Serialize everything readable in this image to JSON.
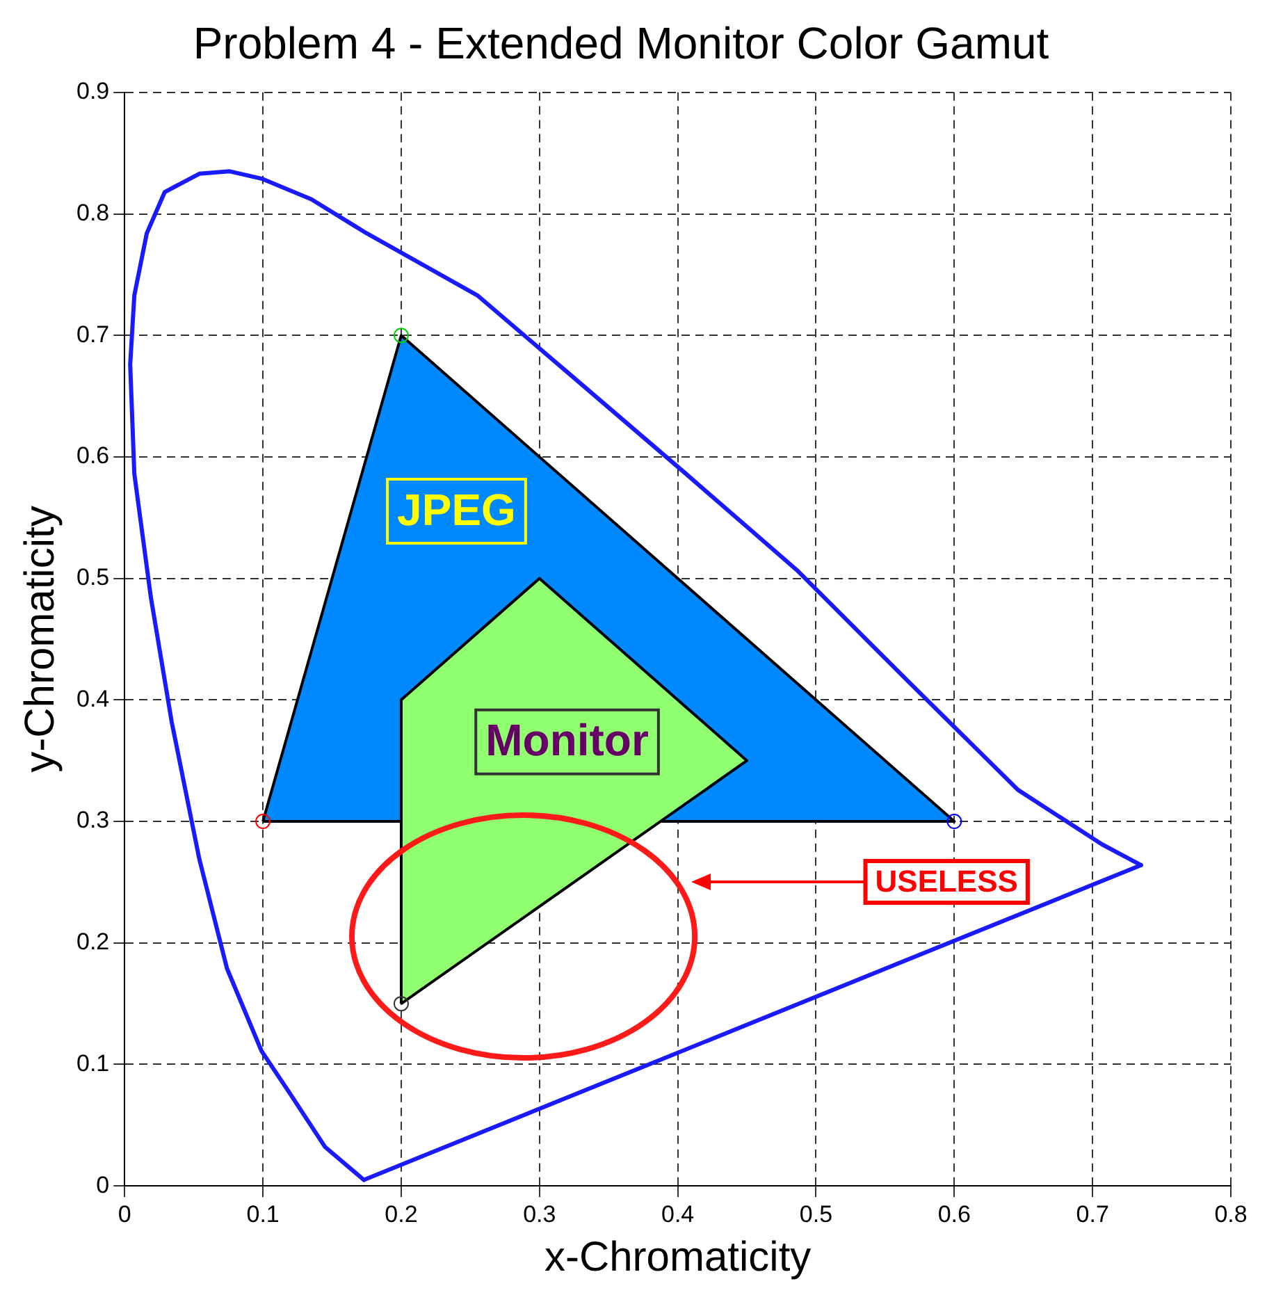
{
  "chart_data": {
    "type": "line",
    "title": "Problem 4 - Extended Monitor Color Gamut",
    "xlabel": "x-Chromaticity",
    "ylabel": "y-Chromaticity",
    "xlim": [
      0,
      0.8
    ],
    "ylim": [
      0,
      0.9
    ],
    "xticks": [
      0,
      0.1,
      0.2,
      0.3,
      0.4,
      0.5,
      0.6,
      0.7,
      0.8
    ],
    "yticks": [
      0,
      0.1,
      0.2,
      0.3,
      0.4,
      0.5,
      0.6,
      0.7,
      0.8,
      0.9
    ],
    "grid": true,
    "legend": false,
    "line_style": "solid",
    "series": [
      {
        "type": "line",
        "color": "#1a1aff",
        "x": [
          0.173,
          0.145,
          0.119,
          0.099,
          0.074,
          0.054,
          0.034,
          0.019,
          0.007,
          0.004,
          0.007,
          0.016,
          0.029,
          0.054,
          0.076,
          0.099,
          0.135,
          0.175,
          0.255,
          0.325,
          0.406,
          0.486,
          0.566,
          0.646,
          0.707,
          0.735
        ],
        "values": [
          0.005,
          0.032,
          0.077,
          0.111,
          0.179,
          0.269,
          0.382,
          0.484,
          0.586,
          0.676,
          0.733,
          0.784,
          0.818,
          0.833,
          0.835,
          0.829,
          0.812,
          0.784,
          0.733,
          0.665,
          0.586,
          0.507,
          0.416,
          0.326,
          0.281,
          0.264
        ]
      },
      {
        "type": "line",
        "color": "#1a1aff",
        "x": [
          0.173,
          0.735
        ],
        "values": [
          0.005,
          0.264
        ]
      },
      {
        "type": "area",
        "color": "#0088ff",
        "x": [
          0.1,
          0.2,
          0.6,
          0.1
        ],
        "values": [
          0.3,
          0.7,
          0.3,
          0.3
        ]
      },
      {
        "type": "area",
        "color": "#90ff70",
        "x": [
          0.2,
          0.2,
          0.3,
          0.45,
          0.2
        ],
        "values": [
          0.15,
          0.4,
          0.5,
          0.35,
          0.15
        ]
      },
      {
        "type": "scatter",
        "marker": "circle",
        "colors": [
          "#ff0000",
          "#00cc00",
          "#0000ff",
          "#333333"
        ],
        "x": [
          0.1,
          0.2,
          0.6,
          0.2
        ],
        "values": [
          0.3,
          0.7,
          0.3,
          0.15
        ]
      }
    ],
    "annotations": [
      "JPEG",
      "Monitor",
      "USELESS"
    ]
  }
}
